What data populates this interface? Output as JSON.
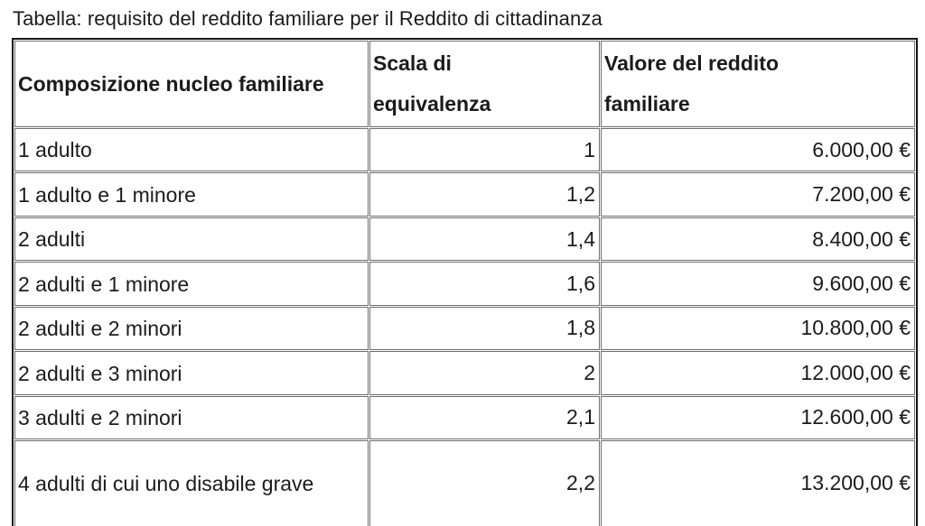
{
  "caption": "Tabella: requisito del reddito familiare per il Reddito di cittadinanza",
  "table": {
    "columns": [
      {
        "label": "Composizione nucleo familiare"
      },
      {
        "label": "Scala di equivalenza"
      },
      {
        "label": "Valore del reddito familiare"
      }
    ],
    "rows": [
      [
        "1 adulto",
        "1",
        "6.000,00 €"
      ],
      [
        "1 adulto e 1 minore",
        "1,2",
        "7.200,00 €"
      ],
      [
        "2 adulti",
        "1,4",
        "8.400,00 €"
      ],
      [
        "2 adulti e 1 minore",
        "1,6",
        "9.600,00 €"
      ],
      [
        "2 adulti e 2 minori",
        "1,8",
        "10.800,00 €"
      ],
      [
        "2 adulti e 3 minori",
        "2",
        "12.000,00 €"
      ],
      [
        "3 adulti e 2 minori",
        "2,1",
        "12.600,00 €"
      ],
      [
        "4 adulti di cui uno disabile grave",
        "2,2",
        "13.200,00 €"
      ]
    ]
  },
  "colors": {
    "text": "#1b1b1b",
    "outer_border": "#161616",
    "inner_border": "#6e6e6e",
    "background": "#ffffff"
  }
}
